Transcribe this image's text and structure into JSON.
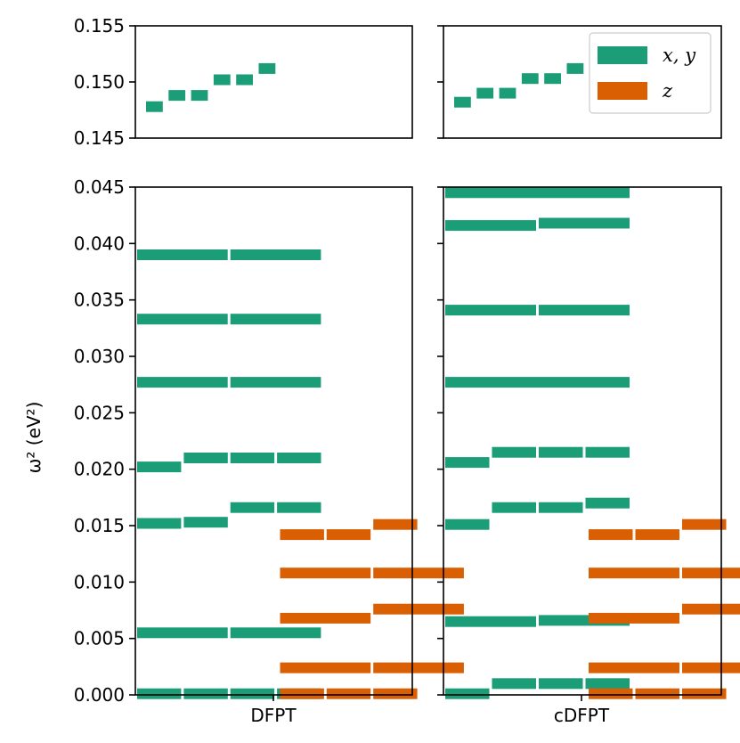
{
  "chart_data": {
    "type": "bar",
    "ylabel": "ω² (eV²)",
    "ylim_top": [
      0.145,
      0.155
    ],
    "ylim_bottom": [
      0.0,
      0.045
    ],
    "yticks_top": [
      "0.155",
      "0.150",
      "0.145"
    ],
    "yticks_bottom": [
      "0.045",
      "0.040",
      "0.035",
      "0.030",
      "0.025",
      "0.020",
      "0.015",
      "0.010",
      "0.005",
      "0.000"
    ],
    "categories": [
      "DFPT",
      "cDFPT"
    ],
    "legend": {
      "placement": "top-right",
      "entries": [
        "x, y",
        "z"
      ]
    },
    "colors": {
      "xy": "#1b9e77",
      "z": "#d95f02"
    },
    "series": [
      {
        "name": "x, y",
        "color": "#1b9e77",
        "panels": {
          "DFPT": {
            "top": [
              {
                "slots": [
                  0
                ],
                "value": 0.1478
              },
              {
                "slots": [
                  1
                ],
                "value": 0.1488
              },
              {
                "slots": [
                  2
                ],
                "value": 0.1488
              },
              {
                "slots": [
                  3
                ],
                "value": 0.1502
              },
              {
                "slots": [
                  4
                ],
                "value": 0.1502
              },
              {
                "slots": [
                  5
                ],
                "value": 0.1512
              }
            ],
            "bottom": [
              {
                "slots": [
                  0,
                  1
                ],
                "value": 0.039
              },
              {
                "slots": [
                  2,
                  3
                ],
                "value": 0.039
              },
              {
                "slots": [
                  0,
                  1
                ],
                "value": 0.0333
              },
              {
                "slots": [
                  2,
                  3
                ],
                "value": 0.0333
              },
              {
                "slots": [
                  0,
                  1
                ],
                "value": 0.0277
              },
              {
                "slots": [
                  2,
                  3
                ],
                "value": 0.0277
              },
              {
                "slots": [
                  0
                ],
                "value": 0.0202
              },
              {
                "slots": [
                  1
                ],
                "value": 0.021
              },
              {
                "slots": [
                  2
                ],
                "value": 0.021
              },
              {
                "slots": [
                  3
                ],
                "value": 0.021
              },
              {
                "slots": [
                  0
                ],
                "value": 0.0152
              },
              {
                "slots": [
                  1
                ],
                "value": 0.0153
              },
              {
                "slots": [
                  2
                ],
                "value": 0.0166
              },
              {
                "slots": [
                  3
                ],
                "value": 0.0166
              },
              {
                "slots": [
                  0,
                  1
                ],
                "value": 0.0055
              },
              {
                "slots": [
                  2,
                  3
                ],
                "value": 0.0055
              },
              {
                "slots": [
                  0
                ],
                "value": 0.0001
              },
              {
                "slots": [
                  1
                ],
                "value": 0.0001
              },
              {
                "slots": [
                  2
                ],
                "value": 0.0001
              },
              {
                "slots": [
                  3
                ],
                "value": 0.0001
              }
            ]
          },
          "cDFPT": {
            "top": [
              {
                "slots": [
                  0
                ],
                "value": 0.1482
              },
              {
                "slots": [
                  1
                ],
                "value": 0.149
              },
              {
                "slots": [
                  2
                ],
                "value": 0.149
              },
              {
                "slots": [
                  3
                ],
                "value": 0.1503
              },
              {
                "slots": [
                  4
                ],
                "value": 0.1503
              },
              {
                "slots": [
                  5
                ],
                "value": 0.1512
              }
            ],
            "bottom": [
              {
                "slots": [
                  0,
                  1,
                  2,
                  3
                ],
                "value": 0.0445
              },
              {
                "slots": [
                  0,
                  1
                ],
                "value": 0.0416
              },
              {
                "slots": [
                  2,
                  3
                ],
                "value": 0.0418
              },
              {
                "slots": [
                  0,
                  1
                ],
                "value": 0.0341
              },
              {
                "slots": [
                  2,
                  3
                ],
                "value": 0.0341
              },
              {
                "slots": [
                  0,
                  1,
                  2,
                  3
                ],
                "value": 0.0277
              },
              {
                "slots": [
                  0
                ],
                "value": 0.0206
              },
              {
                "slots": [
                  1
                ],
                "value": 0.0215
              },
              {
                "slots": [
                  2
                ],
                "value": 0.0215
              },
              {
                "slots": [
                  3
                ],
                "value": 0.0215
              },
              {
                "slots": [
                  0
                ],
                "value": 0.0151
              },
              {
                "slots": [
                  1
                ],
                "value": 0.0166
              },
              {
                "slots": [
                  2
                ],
                "value": 0.0166
              },
              {
                "slots": [
                  3
                ],
                "value": 0.017
              },
              {
                "slots": [
                  0,
                  1
                ],
                "value": 0.0065
              },
              {
                "slots": [
                  2,
                  3
                ],
                "value": 0.0066
              },
              {
                "slots": [
                  0
                ],
                "value": 0.0001
              },
              {
                "slots": [
                  1
                ],
                "value": 0.001
              },
              {
                "slots": [
                  2
                ],
                "value": 0.001
              },
              {
                "slots": [
                  3
                ],
                "value": 0.001
              }
            ]
          }
        }
      },
      {
        "name": "z",
        "color": "#d95f02",
        "panels": {
          "DFPT": {
            "bottom": [
              {
                "slots": [
                  0
                ],
                "value": 0.0142
              },
              {
                "slots": [
                  1
                ],
                "value": 0.0142
              },
              {
                "slots": [
                  2
                ],
                "value": 0.0151
              },
              {
                "slots": [
                  0,
                  1
                ],
                "value": 0.0108
              },
              {
                "slots": [
                  2,
                  3
                ],
                "value": 0.0108
              },
              {
                "slots": [
                  0,
                  1
                ],
                "value": 0.0068
              },
              {
                "slots": [
                  2,
                  3
                ],
                "value": 0.0076
              },
              {
                "slots": [
                  0,
                  1
                ],
                "value": 0.0024
              },
              {
                "slots": [
                  2,
                  3
                ],
                "value": 0.0024
              },
              {
                "slots": [
                  0
                ],
                "value": 0.0001
              },
              {
                "slots": [
                  1
                ],
                "value": 0.0001
              },
              {
                "slots": [
                  2
                ],
                "value": 0.0001
              }
            ]
          },
          "cDFPT": {
            "bottom": [
              {
                "slots": [
                  0
                ],
                "value": 0.0142
              },
              {
                "slots": [
                  1
                ],
                "value": 0.0142
              },
              {
                "slots": [
                  2
                ],
                "value": 0.0151
              },
              {
                "slots": [
                  0,
                  1
                ],
                "value": 0.0108
              },
              {
                "slots": [
                  2,
                  3
                ],
                "value": 0.0108
              },
              {
                "slots": [
                  0,
                  1
                ],
                "value": 0.0068
              },
              {
                "slots": [
                  2,
                  3
                ],
                "value": 0.0076
              },
              {
                "slots": [
                  0,
                  1
                ],
                "value": 0.0024
              },
              {
                "slots": [
                  2,
                  3
                ],
                "value": 0.0024
              },
              {
                "slots": [
                  0
                ],
                "value": 0.0001
              },
              {
                "slots": [
                  1
                ],
                "value": 0.0001
              },
              {
                "slots": [
                  2
                ],
                "value": 0.0001
              }
            ]
          }
        }
      }
    ]
  }
}
